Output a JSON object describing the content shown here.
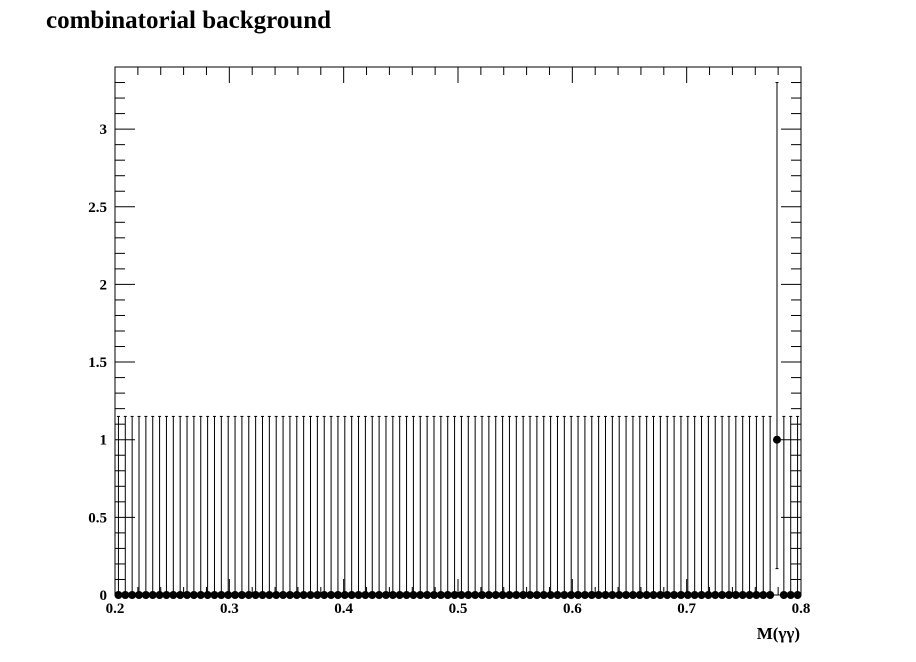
{
  "chart_data": {
    "type": "scatter",
    "title": "combinatorial background",
    "xlabel": "M(γγ)",
    "ylabel": "",
    "xlim": [
      0.2,
      0.8
    ],
    "ylim": [
      0,
      3.4
    ],
    "x_ticks": [
      0.2,
      0.3,
      0.4,
      0.5,
      0.6,
      0.7,
      0.8
    ],
    "x_tick_labels": [
      "0.2",
      "0.3",
      "0.4",
      "0.5",
      "0.6",
      "0.7",
      "0.8"
    ],
    "y_ticks": [
      0,
      0.5,
      1,
      1.5,
      2,
      2.5,
      3
    ],
    "y_tick_labels": [
      "0",
      "0.5",
      "1",
      "1.5",
      "2",
      "2.5",
      "3"
    ],
    "bins": 100,
    "marker_color": "#000000",
    "grid": false,
    "series": [
      {
        "x_start": 0.203,
        "x_step": 0.006,
        "values": [
          0,
          0,
          0,
          0,
          0,
          0,
          0,
          0,
          0,
          0,
          0,
          0,
          0,
          0,
          0,
          0,
          0,
          0,
          0,
          0,
          0,
          0,
          0,
          0,
          0,
          0,
          0,
          0,
          0,
          0,
          0,
          0,
          0,
          0,
          0,
          0,
          0,
          0,
          0,
          0,
          0,
          0,
          0,
          0,
          0,
          0,
          0,
          0,
          0,
          0,
          0,
          0,
          0,
          0,
          0,
          0,
          0,
          0,
          0,
          0,
          0,
          0,
          0,
          0,
          0,
          0,
          0,
          0,
          0,
          0,
          0,
          0,
          0,
          0,
          0,
          0,
          0,
          0,
          0,
          0,
          0,
          0,
          0,
          0,
          0,
          0,
          0,
          0,
          0,
          0,
          0,
          0,
          0,
          0,
          0,
          0,
          1,
          0,
          0,
          0
        ],
        "err_low": [
          0,
          0,
          0,
          0,
          0,
          0,
          0,
          0,
          0,
          0,
          0,
          0,
          0,
          0,
          0,
          0,
          0,
          0,
          0,
          0,
          0,
          0,
          0,
          0,
          0,
          0,
          0,
          0,
          0,
          0,
          0,
          0,
          0,
          0,
          0,
          0,
          0,
          0,
          0,
          0,
          0,
          0,
          0,
          0,
          0,
          0,
          0,
          0,
          0,
          0,
          0,
          0,
          0,
          0,
          0,
          0,
          0,
          0,
          0,
          0,
          0,
          0,
          0,
          0,
          0,
          0,
          0,
          0,
          0,
          0,
          0,
          0,
          0,
          0,
          0,
          0,
          0,
          0,
          0,
          0,
          0,
          0,
          0,
          0,
          0,
          0,
          0,
          0,
          0,
          0,
          0,
          0,
          0,
          0,
          0,
          0,
          0.83,
          0,
          0,
          0
        ],
        "err_high": [
          1.15,
          1.15,
          1.15,
          1.15,
          1.15,
          1.15,
          1.15,
          1.15,
          1.15,
          1.15,
          1.15,
          1.15,
          1.15,
          1.15,
          1.15,
          1.15,
          1.15,
          1.15,
          1.15,
          1.15,
          1.15,
          1.15,
          1.15,
          1.15,
          1.15,
          1.15,
          1.15,
          1.15,
          1.15,
          1.15,
          1.15,
          1.15,
          1.15,
          1.15,
          1.15,
          1.15,
          1.15,
          1.15,
          1.15,
          1.15,
          1.15,
          1.15,
          1.15,
          1.15,
          1.15,
          1.15,
          1.15,
          1.15,
          1.15,
          1.15,
          1.15,
          1.15,
          1.15,
          1.15,
          1.15,
          1.15,
          1.15,
          1.15,
          1.15,
          1.15,
          1.15,
          1.15,
          1.15,
          1.15,
          1.15,
          1.15,
          1.15,
          1.15,
          1.15,
          1.15,
          1.15,
          1.15,
          1.15,
          1.15,
          1.15,
          1.15,
          1.15,
          1.15,
          1.15,
          1.15,
          1.15,
          1.15,
          1.15,
          1.15,
          1.15,
          1.15,
          1.15,
          1.15,
          1.15,
          1.15,
          1.15,
          1.15,
          1.15,
          1.15,
          1.15,
          1.15,
          2.3,
          1.15,
          1.15,
          1.15
        ]
      }
    ]
  }
}
